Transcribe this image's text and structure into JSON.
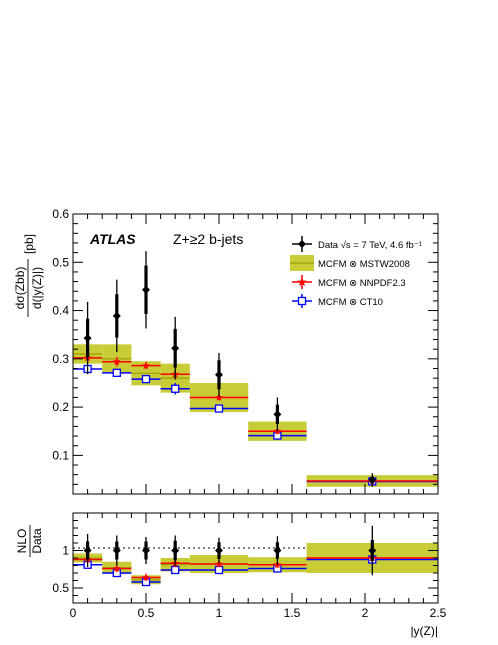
{
  "colors": {
    "data": "#000000",
    "mstw_band": "#c8cc36",
    "mstw_line": "#9aa000",
    "nnpdf": "#ff0000",
    "ct10": "#0000ff"
  },
  "labels": {
    "atlas": "ATLAS",
    "process": "Z+≥2 b-jets",
    "y_axis_top_num": "dσ(Zbb)",
    "y_axis_top_den": "d(|y(Z)|)",
    "y_axis_top_unit": "[pb]",
    "y_axis_bottom_num": "NLO",
    "y_axis_bottom_den": "Data",
    "x_axis": "|y(Z)|"
  },
  "legend": [
    {
      "key": "data",
      "label": "Data √s = 7 TeV, 4.6 fb⁻¹"
    },
    {
      "key": "mstw",
      "label": "MCFM ⊗ MSTW2008"
    },
    {
      "key": "nnpdf",
      "label": "MCFM ⊗ NNPDF2.3"
    },
    {
      "key": "ct10",
      "label": "MCFM ⊗ CT10"
    }
  ],
  "chart_data": [
    {
      "type": "scatter",
      "panel": "main",
      "xlim": [
        0,
        2.5
      ],
      "ylim": [
        0.02,
        0.6
      ],
      "xticks": [
        0,
        0.5,
        1,
        1.5,
        2,
        2.5
      ],
      "yticks": [
        0.1,
        0.2,
        0.3,
        0.4,
        0.5,
        0.6
      ],
      "ytick_labels": [
        "0.1",
        "0.2",
        "0.3",
        "0.4",
        "0.5",
        "0.6"
      ],
      "bins": [
        [
          0,
          0.2
        ],
        [
          0.2,
          0.4
        ],
        [
          0.4,
          0.6
        ],
        [
          0.6,
          0.8
        ],
        [
          0.8,
          1.2
        ],
        [
          1.2,
          1.6
        ],
        [
          1.6,
          2.5
        ]
      ],
      "series": [
        {
          "key": "data",
          "x": [
            0.1,
            0.3,
            0.5,
            0.7,
            1.0,
            1.4,
            2.05
          ],
          "y": [
            0.343,
            0.389,
            0.443,
            0.322,
            0.267,
            0.185,
            0.049
          ],
          "err_stat": [
            0.04,
            0.045,
            0.05,
            0.04,
            0.03,
            0.02,
            0.007
          ],
          "err_total": [
            0.075,
            0.075,
            0.08,
            0.065,
            0.045,
            0.035,
            0.014
          ]
        },
        {
          "key": "mstw",
          "y": [
            0.31,
            0.3,
            0.27,
            0.26,
            0.22,
            0.15,
            0.047
          ],
          "err": [
            0.02,
            0.03,
            0.025,
            0.03,
            0.03,
            0.02,
            0.012
          ]
        },
        {
          "key": "nnpdf",
          "y": [
            0.302,
            0.294,
            0.286,
            0.268,
            0.22,
            0.15,
            0.047
          ],
          "err": [
            0.01,
            0.01,
            0.008,
            0.008,
            0.006,
            0.006,
            0.003
          ]
        },
        {
          "key": "ct10",
          "y": [
            0.279,
            0.271,
            0.258,
            0.238,
            0.197,
            0.141,
            0.046
          ],
          "err": [
            0.007,
            0.007,
            0.007,
            0.012,
            0.007,
            0.006,
            0.003
          ]
        }
      ]
    },
    {
      "type": "scatter",
      "panel": "ratio",
      "xlim": [
        0,
        2.5
      ],
      "ylim": [
        0.3,
        1.5
      ],
      "xticks": [
        0,
        0.5,
        1,
        1.5,
        2,
        2.5
      ],
      "xtick_labels": [
        "0",
        "0.5",
        "1",
        "1.5",
        "2",
        "2.5"
      ],
      "yticks": [
        0.5,
        1
      ],
      "ytick_labels": [
        "0.5",
        "1"
      ],
      "reference_line": 1,
      "series": [
        {
          "key": "data",
          "y": [
            1,
            1,
            1,
            1,
            1,
            1,
            1
          ],
          "err_stat": [
            0.12,
            0.12,
            0.12,
            0.13,
            0.11,
            0.11,
            0.14
          ],
          "err_total": [
            0.22,
            0.2,
            0.18,
            0.2,
            0.17,
            0.19,
            0.33
          ]
        },
        {
          "key": "mstw",
          "y": [
            0.9,
            0.77,
            0.61,
            0.81,
            0.82,
            0.81,
            0.9
          ],
          "err": [
            0.06,
            0.08,
            0.06,
            0.09,
            0.12,
            0.1,
            0.2
          ]
        },
        {
          "key": "nnpdf",
          "y": [
            0.88,
            0.76,
            0.64,
            0.83,
            0.82,
            0.81,
            0.9
          ],
          "err": [
            0.05,
            0.05,
            0.05,
            0.05,
            0.04,
            0.04,
            0.05
          ]
        },
        {
          "key": "ct10",
          "y": [
            0.81,
            0.7,
            0.58,
            0.74,
            0.74,
            0.76,
            0.88
          ],
          "err": [
            0.04,
            0.04,
            0.04,
            0.05,
            0.04,
            0.04,
            0.05
          ]
        }
      ]
    }
  ]
}
